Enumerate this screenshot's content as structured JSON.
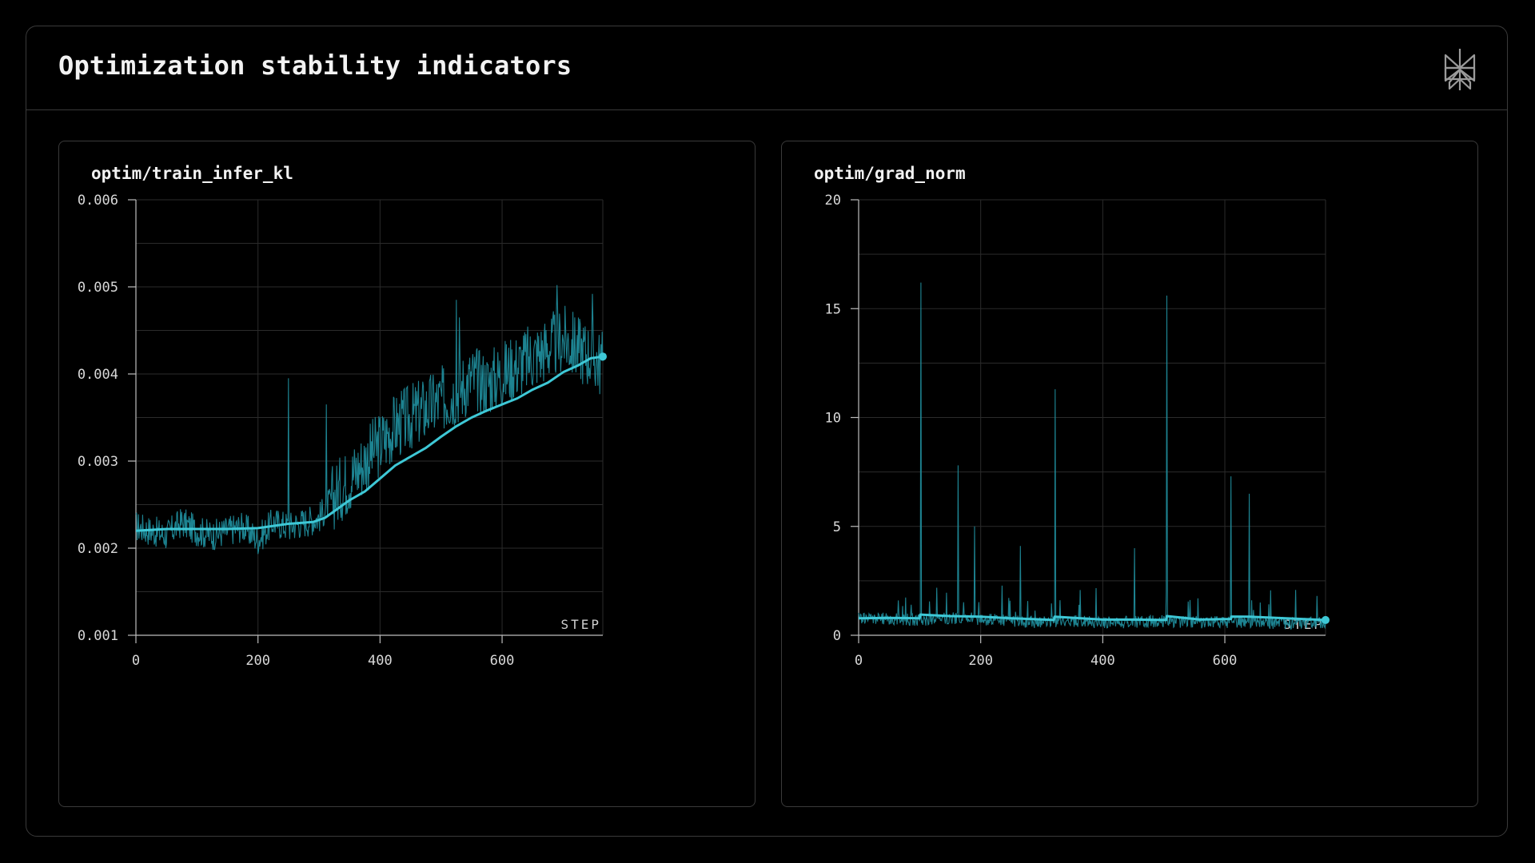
{
  "header": {
    "title": "Optimization stability indicators",
    "logo_icon": "perplexity-logo-icon"
  },
  "colors": {
    "background": "#000000",
    "border": "#3a3a3a",
    "grid": "#2b2b2b",
    "raw_series": "#1f8a99",
    "smoothed_series": "#3ec8d6"
  },
  "chart_data": [
    {
      "type": "line",
      "title": "optim/train_infer_kl",
      "xlabel": "STEP",
      "ylabel": "",
      "xlim": [
        0,
        765
      ],
      "ylim": [
        0.001,
        0.006
      ],
      "x_ticks": [
        0,
        200,
        400,
        600
      ],
      "y_ticks": [
        0.001,
        0.002,
        0.003,
        0.004,
        0.005,
        0.006
      ],
      "y_tick_labels": [
        "0.001",
        "0.002",
        "0.003",
        "0.004",
        "0.005",
        "0.006"
      ],
      "grid": true,
      "series": [
        {
          "style": "raw",
          "x": [
            0,
            25,
            50,
            75,
            100,
            125,
            150,
            175,
            200,
            225,
            250,
            275,
            300,
            325,
            350,
            375,
            400,
            425,
            450,
            475,
            500,
            525,
            550,
            575,
            600,
            625,
            650,
            675,
            700,
            725,
            750,
            765
          ],
          "y": [
            0.00225,
            0.0022,
            0.00215,
            0.0023,
            0.0022,
            0.00215,
            0.0022,
            0.00225,
            0.0021,
            0.0023,
            0.00225,
            0.0023,
            0.00235,
            0.0026,
            0.0028,
            0.003,
            0.0032,
            0.0034,
            0.0035,
            0.0036,
            0.0037,
            0.0038,
            0.00395,
            0.0039,
            0.004,
            0.0041,
            0.0042,
            0.0043,
            0.0044,
            0.0043,
            0.0042,
            0.0041
          ],
          "spikes": [
            {
              "x": 250,
              "y": 0.00395
            },
            {
              "x": 312,
              "y": 0.00365
            },
            {
              "x": 525,
              "y": 0.00485
            },
            {
              "x": 530,
              "y": 0.00465
            },
            {
              "x": 690,
              "y": 0.00502
            },
            {
              "x": 748,
              "y": 0.00492
            }
          ]
        },
        {
          "style": "smoothed",
          "x": [
            0,
            50,
            100,
            150,
            200,
            250,
            290,
            310,
            330,
            350,
            375,
            400,
            425,
            450,
            475,
            500,
            525,
            550,
            575,
            600,
            625,
            650,
            675,
            700,
            725,
            745,
            765
          ],
          "y": [
            0.0022,
            0.00222,
            0.00222,
            0.00222,
            0.00223,
            0.00228,
            0.0023,
            0.00235,
            0.00245,
            0.00255,
            0.00265,
            0.0028,
            0.00295,
            0.00305,
            0.00315,
            0.00328,
            0.0034,
            0.0035,
            0.00358,
            0.00365,
            0.00372,
            0.00382,
            0.0039,
            0.00402,
            0.0041,
            0.00418,
            0.0042
          ]
        }
      ]
    },
    {
      "type": "line",
      "title": "optim/grad_norm",
      "xlabel": "STEP",
      "ylabel": "",
      "xlim": [
        0,
        765
      ],
      "ylim": [
        0,
        20
      ],
      "x_ticks": [
        0,
        200,
        400,
        600
      ],
      "y_ticks": [
        0,
        5,
        10,
        15,
        20
      ],
      "y_tick_labels": [
        "0",
        "5",
        "10",
        "15",
        "20"
      ],
      "grid": true,
      "series": [
        {
          "style": "raw",
          "x": [
            0,
            50,
            100,
            150,
            200,
            250,
            300,
            350,
            400,
            450,
            500,
            550,
            600,
            650,
            700,
            765
          ],
          "y": [
            0.8,
            0.75,
            0.7,
            0.8,
            0.75,
            0.65,
            0.6,
            0.65,
            0.6,
            0.6,
            0.65,
            0.6,
            0.6,
            0.6,
            0.55,
            0.6
          ],
          "spikes": [
            {
              "x": 102,
              "y": 16.2
            },
            {
              "x": 163,
              "y": 7.8
            },
            {
              "x": 190,
              "y": 5.0
            },
            {
              "x": 265,
              "y": 4.1
            },
            {
              "x": 322,
              "y": 11.3
            },
            {
              "x": 452,
              "y": 4.0
            },
            {
              "x": 505,
              "y": 15.6
            },
            {
              "x": 610,
              "y": 7.3
            },
            {
              "x": 640,
              "y": 6.5
            }
          ]
        },
        {
          "style": "smoothed",
          "x": [
            0,
            50,
            100,
            101,
            150,
            200,
            250,
            320,
            321,
            400,
            450,
            504,
            505,
            560,
            610,
            611,
            640,
            700,
            765
          ],
          "y": [
            0.78,
            0.8,
            0.78,
            0.95,
            0.88,
            0.85,
            0.78,
            0.7,
            0.85,
            0.72,
            0.72,
            0.7,
            0.88,
            0.72,
            0.75,
            0.86,
            0.85,
            0.78,
            0.7
          ]
        }
      ]
    }
  ]
}
